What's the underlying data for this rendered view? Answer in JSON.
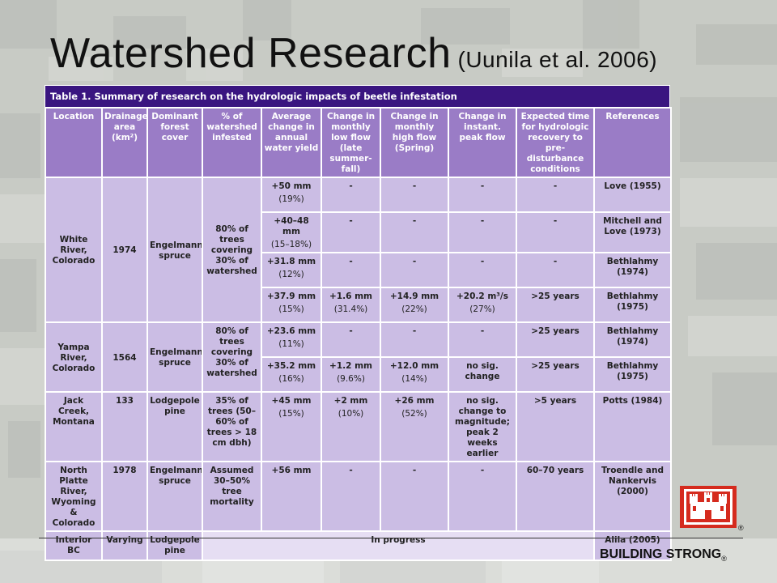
{
  "slide": {
    "title": "Watershed Research",
    "citation": "(Uunila et al. 2006)"
  },
  "table": {
    "caption": "Table 1. Summary of research on the hydrologic impacts of beetle infestation",
    "headers": [
      "Location",
      "Drainage area (km²)",
      "Dominant forest cover",
      "% of watershed infested",
      "Average change in annual water yield",
      "Change in monthly low flow (late summer-fall)",
      "Change in monthly high flow (Spring)",
      "Change in instant. peak flow",
      "Expected time for hydrologic recovery to pre-disturbance conditions",
      "References"
    ],
    "groups": {
      "white_river": {
        "location": "White River, Colorado",
        "area": "1974",
        "cover": "Engelmann spruce",
        "infested": "80% of trees covering 30% of watershed"
      },
      "yampa_river": {
        "location": "Yampa River, Colorado",
        "area": "1564",
        "cover": "Engelmann spruce",
        "infested": "80% of trees covering 30% of watershed"
      }
    },
    "rows": [
      {
        "yield": "+50 mm",
        "yield_pct": "(19%)",
        "low": "-",
        "low_pct": "",
        "high": "-",
        "high_pct": "",
        "peak": "-",
        "peak_pct": "",
        "recovery": "-",
        "ref": "Love (1955)"
      },
      {
        "yield": "+40–48 mm",
        "yield_pct": "(15–18%)",
        "low": "-",
        "low_pct": "",
        "high": "-",
        "high_pct": "",
        "peak": "-",
        "peak_pct": "",
        "recovery": "-",
        "ref": "Mitchell and Love (1973)"
      },
      {
        "yield": "+31.8 mm",
        "yield_pct": "(12%)",
        "low": "-",
        "low_pct": "",
        "high": "-",
        "high_pct": "",
        "peak": "-",
        "peak_pct": "",
        "recovery": "-",
        "ref": "Bethlahmy (1974)"
      },
      {
        "yield": "+37.9 mm",
        "yield_pct": "(15%)",
        "low": "+1.6 mm",
        "low_pct": "(31.4%)",
        "high": "+14.9 mm",
        "high_pct": "(22%)",
        "peak": "+20.2 m³/s",
        "peak_pct": "(27%)",
        "recovery": ">25 years",
        "ref": "Bethlahmy (1975)"
      },
      {
        "yield": "+23.6 mm",
        "yield_pct": "(11%)",
        "low": "-",
        "low_pct": "",
        "high": "-",
        "high_pct": "",
        "peak": "-",
        "peak_pct": "",
        "recovery": ">25 years",
        "ref": "Bethlahmy (1974)"
      },
      {
        "yield": "+35.2 mm",
        "yield_pct": "(16%)",
        "low": "+1.2 mm",
        "low_pct": "(9.6%)",
        "high": "+12.0 mm",
        "high_pct": "(14%)",
        "peak": "no sig. change",
        "peak_pct": "",
        "recovery": ">25 years",
        "ref": "Bethlahmy (1975)"
      },
      {
        "location": "Jack Creek, Montana",
        "area": "133",
        "cover": "Lodgepole pine",
        "infested": "35% of trees (50–60% of trees > 18 cm dbh)",
        "yield": "+45 mm",
        "yield_pct": "(15%)",
        "low": "+2 mm",
        "low_pct": "(10%)",
        "high": "+26 mm",
        "high_pct": "(52%)",
        "peak": "no sig. change to magnitude; peak 2 weeks earlier",
        "peak_pct": "",
        "recovery": ">5 years",
        "ref": "Potts (1984)"
      },
      {
        "location": "North Platte River, Wyoming & Colorado",
        "area": "1978",
        "cover": "Engelmann spruce",
        "infested": "Assumed 30–50% tree mortality",
        "yield": "+56 mm",
        "yield_pct": "",
        "low": "-",
        "low_pct": "",
        "high": "-",
        "high_pct": "",
        "peak": "-",
        "peak_pct": "",
        "recovery": "60–70 years",
        "ref": "Troendle and Nankervis (2000)"
      },
      {
        "location": "Interior BC",
        "area": "Varying",
        "cover": "Lodgepole pine",
        "in_progress": "In progress",
        "ref": "Alila (2005)"
      }
    ]
  },
  "footer": {
    "tagline": "BUILDING STRONG",
    "reg_mark": "®"
  },
  "colors": {
    "caption_bg": "#3a1580",
    "header_bg": "#9a7cc6",
    "cell_bg": "#cbbde4",
    "logo_red": "#d52b1e"
  }
}
